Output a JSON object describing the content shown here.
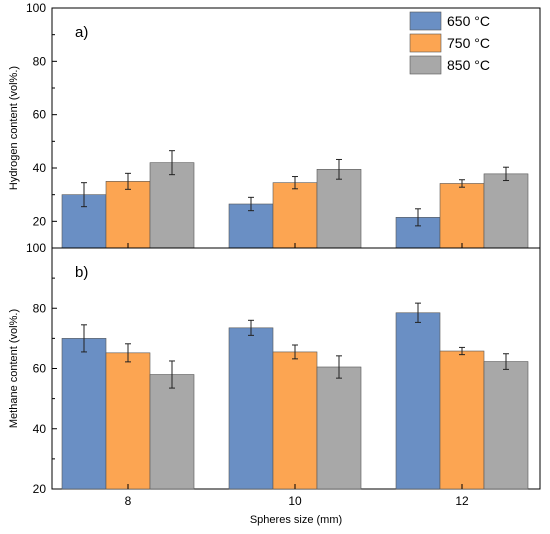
{
  "chart_data": [
    {
      "panel_label": "a)",
      "type": "bar",
      "ylabel": "Hydrogen content (vol%.)",
      "xlabel": "",
      "ylim": [
        10,
        100
      ],
      "yticks": [
        20,
        40,
        60,
        80,
        100
      ],
      "categories": [
        "8",
        "10",
        "12"
      ],
      "series": [
        {
          "name": "650 °C",
          "color": "#6a8fc4",
          "values": [
            30,
            26.5,
            21.5
          ],
          "errors": [
            4.5,
            2.5,
            3.2
          ]
        },
        {
          "name": "750 °C",
          "color": "#fca552",
          "values": [
            35,
            34.5,
            34.2
          ],
          "errors": [
            3.0,
            2.3,
            1.4
          ]
        },
        {
          "name": "850 °C",
          "color": "#a8a8a8",
          "values": [
            42,
            39.5,
            37.8
          ],
          "errors": [
            4.5,
            3.7,
            2.5
          ]
        }
      ],
      "legend": "top-right",
      "grid": false
    },
    {
      "panel_label": "b)",
      "type": "bar",
      "ylabel": "Methane content (vol%.)",
      "xlabel": "Spheres size (mm)",
      "ylim": [
        20,
        100
      ],
      "yticks": [
        20,
        40,
        60,
        80,
        100
      ],
      "categories": [
        "8",
        "10",
        "12"
      ],
      "series": [
        {
          "name": "650 °C",
          "color": "#6a8fc4",
          "values": [
            70,
            73.5,
            78.5
          ],
          "errors": [
            4.5,
            2.5,
            3.2
          ]
        },
        {
          "name": "750 °C",
          "color": "#fca552",
          "values": [
            65.2,
            65.5,
            65.8
          ],
          "errors": [
            3.0,
            2.3,
            1.2
          ]
        },
        {
          "name": "850 °C",
          "color": "#a8a8a8",
          "values": [
            58,
            60.5,
            62.3
          ],
          "errors": [
            4.5,
            3.7,
            2.6
          ]
        }
      ],
      "grid": false
    }
  ]
}
